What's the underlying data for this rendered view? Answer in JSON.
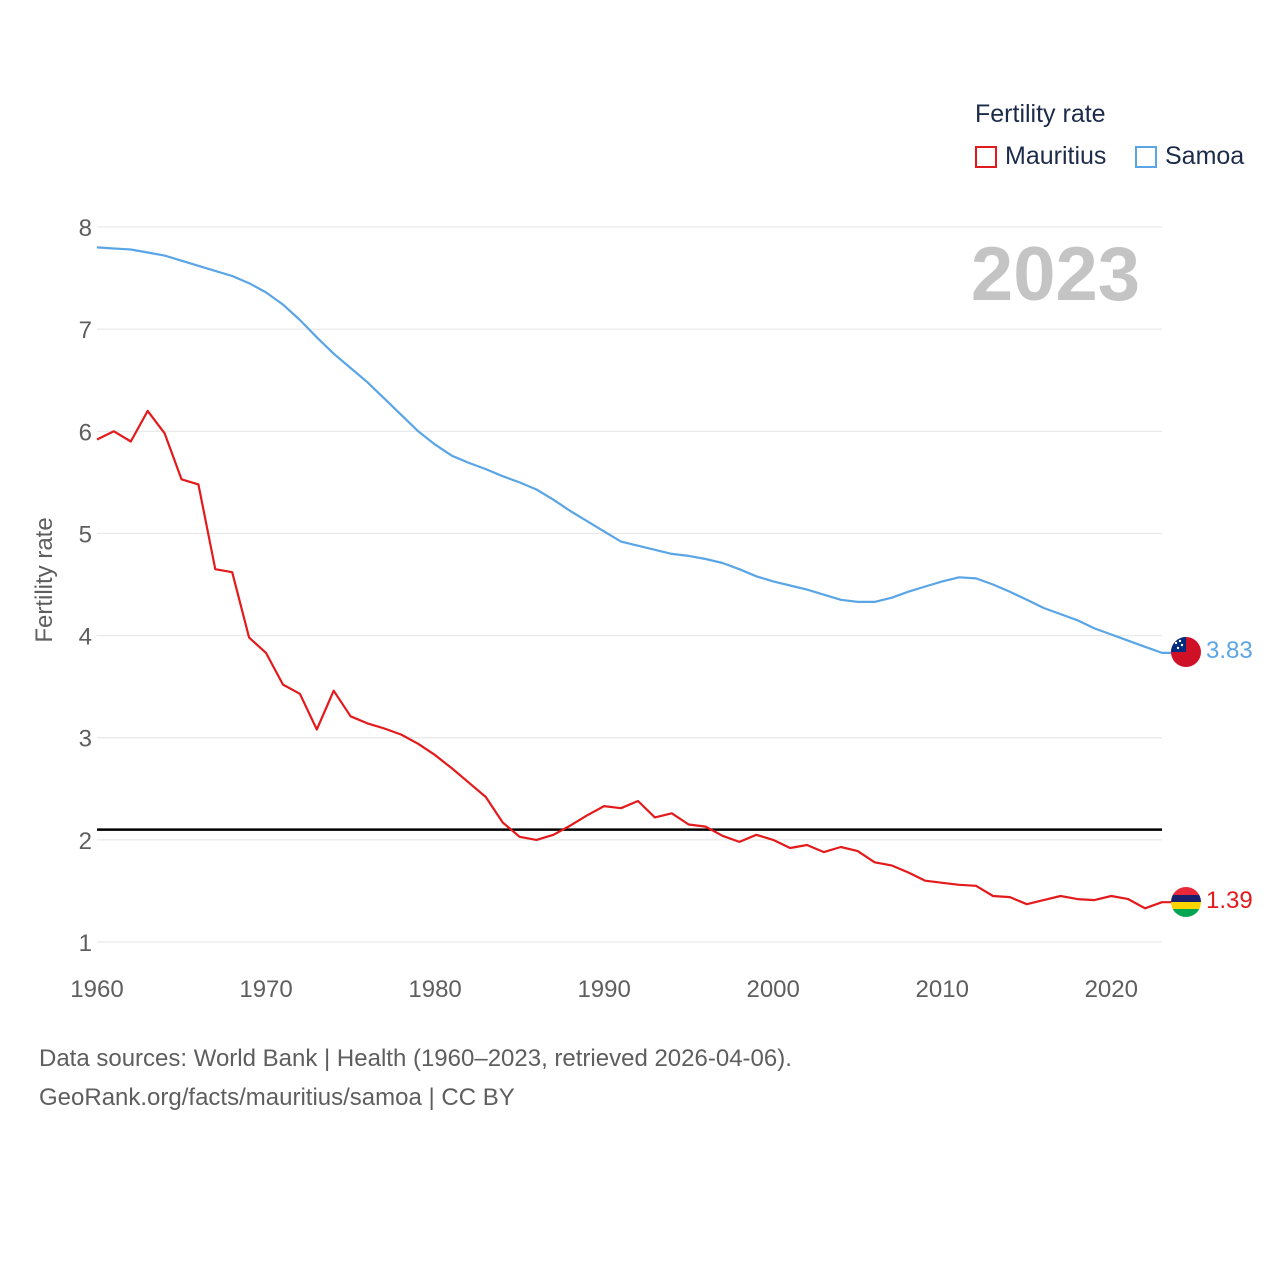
{
  "legend": {
    "title": "Fertility rate",
    "items": [
      {
        "label": "Mauritius",
        "color": "#e31a1c"
      },
      {
        "label": "Samoa",
        "color": "#5aa5e6"
      }
    ]
  },
  "source": {
    "line1": "Data sources: World Bank | Health (1960–2023, retrieved 2026-04-06).",
    "line2": "GeoRank.org/facts/mauritius/samoa | CC BY"
  },
  "chart_data": {
    "type": "line",
    "year_watermark": "2023",
    "ylabel": "Fertility rate",
    "xlabel": "",
    "xlim": [
      1960,
      2023
    ],
    "ylim": [
      1,
      8
    ],
    "x_ticks": [
      "1960",
      "1970",
      "1980",
      "1990",
      "2000",
      "2010",
      "2020"
    ],
    "y_ticks": [
      "1",
      "2",
      "3",
      "4",
      "5",
      "6",
      "7",
      "8"
    ],
    "reference_line": {
      "value": 2.1,
      "color": "#000000"
    },
    "x": [
      1960,
      1961,
      1962,
      1963,
      1964,
      1965,
      1966,
      1967,
      1968,
      1969,
      1970,
      1971,
      1972,
      1973,
      1974,
      1975,
      1976,
      1977,
      1978,
      1979,
      1980,
      1981,
      1982,
      1983,
      1984,
      1985,
      1986,
      1987,
      1988,
      1989,
      1990,
      1991,
      1992,
      1993,
      1994,
      1995,
      1996,
      1997,
      1998,
      1999,
      2000,
      2001,
      2002,
      2003,
      2004,
      2005,
      2006,
      2007,
      2008,
      2009,
      2010,
      2011,
      2012,
      2013,
      2014,
      2015,
      2016,
      2017,
      2018,
      2019,
      2020,
      2021,
      2022,
      2023
    ],
    "series": [
      {
        "name": "Mauritius",
        "color": "#e31a1c",
        "end_label": "1.39",
        "values": [
          5.92,
          6.0,
          5.9,
          6.2,
          5.98,
          5.53,
          5.48,
          4.65,
          4.62,
          3.98,
          3.83,
          3.52,
          3.43,
          3.08,
          3.46,
          3.21,
          3.14,
          3.09,
          3.03,
          2.94,
          2.83,
          2.7,
          2.56,
          2.42,
          2.17,
          2.03,
          2.0,
          2.05,
          2.14,
          2.24,
          2.33,
          2.31,
          2.38,
          2.22,
          2.26,
          2.15,
          2.13,
          2.04,
          1.98,
          2.05,
          2.0,
          1.92,
          1.95,
          1.88,
          1.93,
          1.89,
          1.78,
          1.75,
          1.68,
          1.6,
          1.58,
          1.56,
          1.55,
          1.45,
          1.44,
          1.37,
          1.41,
          1.45,
          1.42,
          1.41,
          1.45,
          1.42,
          1.33,
          1.39
        ]
      },
      {
        "name": "Samoa",
        "color": "#5aa5e6",
        "end_label": "3.83",
        "values": [
          7.8,
          7.79,
          7.78,
          7.75,
          7.72,
          7.67,
          7.62,
          7.57,
          7.52,
          7.45,
          7.36,
          7.24,
          7.09,
          6.92,
          6.76,
          6.62,
          6.48,
          6.32,
          6.16,
          6.0,
          5.87,
          5.76,
          5.69,
          5.63,
          5.56,
          5.5,
          5.43,
          5.33,
          5.22,
          5.12,
          5.02,
          4.92,
          4.88,
          4.84,
          4.8,
          4.78,
          4.75,
          4.71,
          4.65,
          4.58,
          4.53,
          4.49,
          4.45,
          4.4,
          4.35,
          4.33,
          4.33,
          4.37,
          4.43,
          4.48,
          4.53,
          4.57,
          4.56,
          4.5,
          4.43,
          4.35,
          4.27,
          4.21,
          4.15,
          4.07,
          4.01,
          3.95,
          3.89,
          3.83
        ]
      }
    ]
  }
}
